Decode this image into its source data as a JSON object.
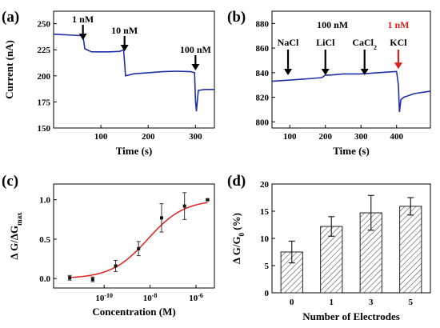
{
  "chart_data": [
    {
      "type": "line",
      "panel_label": "(a)",
      "xlabel": "Time (s)",
      "ylabel": "Current (nA)",
      "xlim": [
        0,
        340
      ],
      "ylim": [
        150,
        262
      ],
      "x_ticks": [
        100,
        200,
        300
      ],
      "y_ticks": [
        150,
        175,
        200,
        225,
        250
      ],
      "series": [
        {
          "color": "#1f2fa8",
          "x": [
            0,
            20,
            40,
            62,
            66,
            80,
            100,
            120,
            140,
            148,
            150,
            152,
            170,
            200,
            230,
            260,
            290,
            298,
            300,
            302,
            306,
            320,
            340
          ],
          "y": [
            240,
            239.5,
            239,
            238.5,
            226,
            223,
            223,
            223,
            223.5,
            225,
            213,
            200,
            202,
            203,
            204,
            204.5,
            204,
            203,
            176,
            166,
            186,
            187,
            187
          ]
        }
      ],
      "annotations": [
        {
          "text": "1 nM",
          "x": 62,
          "arrow": true
        },
        {
          "text": "10 nM",
          "x": 150,
          "arrow": true
        },
        {
          "text": "100 nM",
          "x": 300,
          "arrow": true
        }
      ]
    },
    {
      "type": "line",
      "panel_label": "(b)",
      "xlabel": "Time (s)",
      "ylabel": "",
      "xlim": [
        50,
        495
      ],
      "ylim": [
        795,
        890
      ],
      "x_ticks": [
        100,
        200,
        300,
        400
      ],
      "y_ticks": [
        800,
        820,
        840,
        860,
        880
      ],
      "series": [
        {
          "color": "#1f2fa8",
          "x": [
            50,
            100,
            150,
            190,
            200,
            210,
            250,
            300,
            350,
            400,
            405,
            408,
            412,
            420,
            450,
            495
          ],
          "y": [
            833,
            834,
            835,
            836,
            838,
            838,
            839,
            839,
            840,
            841,
            830,
            808,
            818,
            820,
            823,
            825
          ]
        }
      ],
      "annotations": [
        {
          "text": "100 nM",
          "x": 220,
          "arrow": false
        },
        {
          "text": "NaCl",
          "x": 95,
          "arrow": true,
          "color": "#000000"
        },
        {
          "text": "LiCl",
          "x": 200,
          "arrow": true,
          "color": "#000000"
        },
        {
          "text": "CaCl",
          "sub": "2",
          "x": 310,
          "arrow": true,
          "color": "#000000"
        },
        {
          "text": "1 nM",
          "x": 405,
          "arrow": false,
          "color": "#e0201a"
        },
        {
          "text": "KCl",
          "x": 405,
          "arrow": true,
          "color": "#000000",
          "arrow_color": "#e0201a"
        }
      ]
    },
    {
      "type": "scatter",
      "panel_label": "(c)",
      "xlabel": "Concentration (M)",
      "ylabel": "Δ G/ΔG",
      "ylabel_sub": "max",
      "xscale": "log",
      "xlim_log10": [
        -12.2,
        -5.2
      ],
      "ylim": [
        -0.12,
        1.2
      ],
      "x_tick_labels": [
        {
          "base": "10",
          "exp": "-10",
          "log10": -10
        },
        {
          "base": "10",
          "exp": "-8",
          "log10": -8
        },
        {
          "base": "10",
          "exp": "-6",
          "log10": -6
        }
      ],
      "y_ticks": [
        0.0,
        0.5,
        1.0
      ],
      "y_tick_labels": [
        "0.0",
        "0.5",
        "1.0"
      ],
      "points": [
        {
          "log10x": -11.5,
          "y": 0.01,
          "err": 0.03
        },
        {
          "log10x": -10.5,
          "y": -0.01,
          "err": 0.03
        },
        {
          "log10x": -9.5,
          "y": 0.16,
          "err": 0.07
        },
        {
          "log10x": -8.5,
          "y": 0.38,
          "err": 0.09
        },
        {
          "log10x": -7.5,
          "y": 0.77,
          "err": 0.18
        },
        {
          "log10x": -6.5,
          "y": 0.92,
          "err": 0.17
        },
        {
          "log10x": -5.5,
          "y": 1.0,
          "err": 0.01
        }
      ],
      "fit": {
        "color": "#e0201a",
        "bottom": 0.0,
        "top": 1.0,
        "log10_ec50": -8.1,
        "hill": 0.55
      }
    },
    {
      "type": "bar",
      "panel_label": "(d)",
      "xlabel": "Number of Electrodes",
      "ylabel": "Δ G/G",
      "ylabel_sub": "0",
      "ylabel_suffix": " (%)",
      "categories": [
        "0",
        "1",
        "3",
        "5"
      ],
      "values": [
        7.5,
        12.2,
        14.7,
        15.9
      ],
      "errors": [
        2.0,
        1.8,
        3.2,
        1.6
      ],
      "ylim": [
        0,
        20
      ],
      "y_ticks": [
        0,
        5,
        10,
        15,
        20
      ],
      "bar_pattern": "diagonal-hatch"
    }
  ]
}
